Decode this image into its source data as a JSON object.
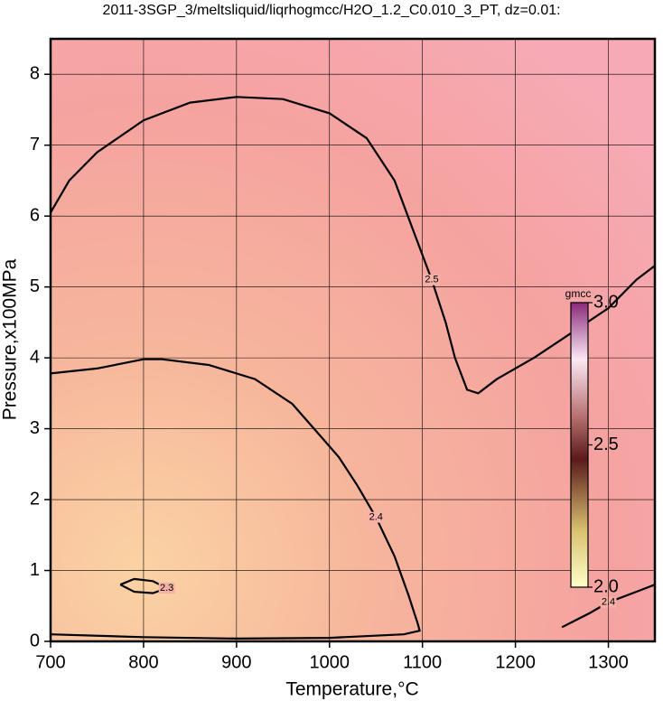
{
  "chart_data": {
    "type": "contour",
    "title": "2011-3SGP_3/meltsliquid/liqrhogmcc/H2O_1.2_C0.010_3_PT, dz=0.01:",
    "x_label": "Temperature,°C",
    "y_label": "Pressure,x100MPa",
    "xlim": [
      700,
      1350
    ],
    "ylim": [
      0,
      8.5
    ],
    "xticks": [
      700,
      800,
      900,
      1000,
      1100,
      1200,
      1300
    ],
    "yticks": [
      0,
      1,
      2,
      3,
      4,
      5,
      6,
      7,
      8
    ],
    "grid": true,
    "contours": [
      {
        "level": 2.5,
        "color": "#000000",
        "x": [
          700,
          720,
          750,
          800,
          850,
          900,
          950,
          1000,
          1040,
          1070,
          1090,
          1110,
          1125,
          1135,
          1148,
          1160,
          1180,
          1220,
          1260,
          1300,
          1330,
          1350
        ],
        "y": [
          6.05,
          6.5,
          6.9,
          7.35,
          7.6,
          7.68,
          7.65,
          7.45,
          7.1,
          6.5,
          5.8,
          5.1,
          4.5,
          4.0,
          3.55,
          3.5,
          3.7,
          4.0,
          4.35,
          4.7,
          5.1,
          5.3
        ]
      },
      {
        "level": 2.4,
        "color": "#000000",
        "x": [
          700,
          750,
          800,
          820,
          870,
          920,
          960,
          990,
          1010,
          1030,
          1050,
          1070,
          1085,
          1095,
          1097,
          1080,
          1000,
          900,
          800,
          700
        ],
        "y": [
          3.78,
          3.85,
          3.98,
          3.98,
          3.9,
          3.7,
          3.35,
          2.9,
          2.6,
          2.2,
          1.75,
          1.2,
          0.65,
          0.25,
          0.15,
          0.1,
          0.05,
          0.04,
          0.06,
          0.1
        ]
      },
      {
        "level": 2.4,
        "color": "#000000",
        "x": [
          1250,
          1280,
          1300,
          1330,
          1350
        ],
        "y": [
          0.2,
          0.4,
          0.55,
          0.7,
          0.8
        ]
      },
      {
        "level": 2.3,
        "color": "#000000",
        "x": [
          775,
          790,
          810,
          825,
          810,
          790,
          775
        ],
        "y": [
          0.8,
          0.88,
          0.85,
          0.75,
          0.68,
          0.7,
          0.8
        ]
      }
    ],
    "colorbar": {
      "label": "gmcc",
      "lim": [
        2.0,
        3.0
      ],
      "ticks": [
        {
          "value": 2.0,
          "label": "2.0"
        },
        2.5,
        {
          "value": 3.0,
          "label": "3.0"
        }
      ]
    }
  }
}
